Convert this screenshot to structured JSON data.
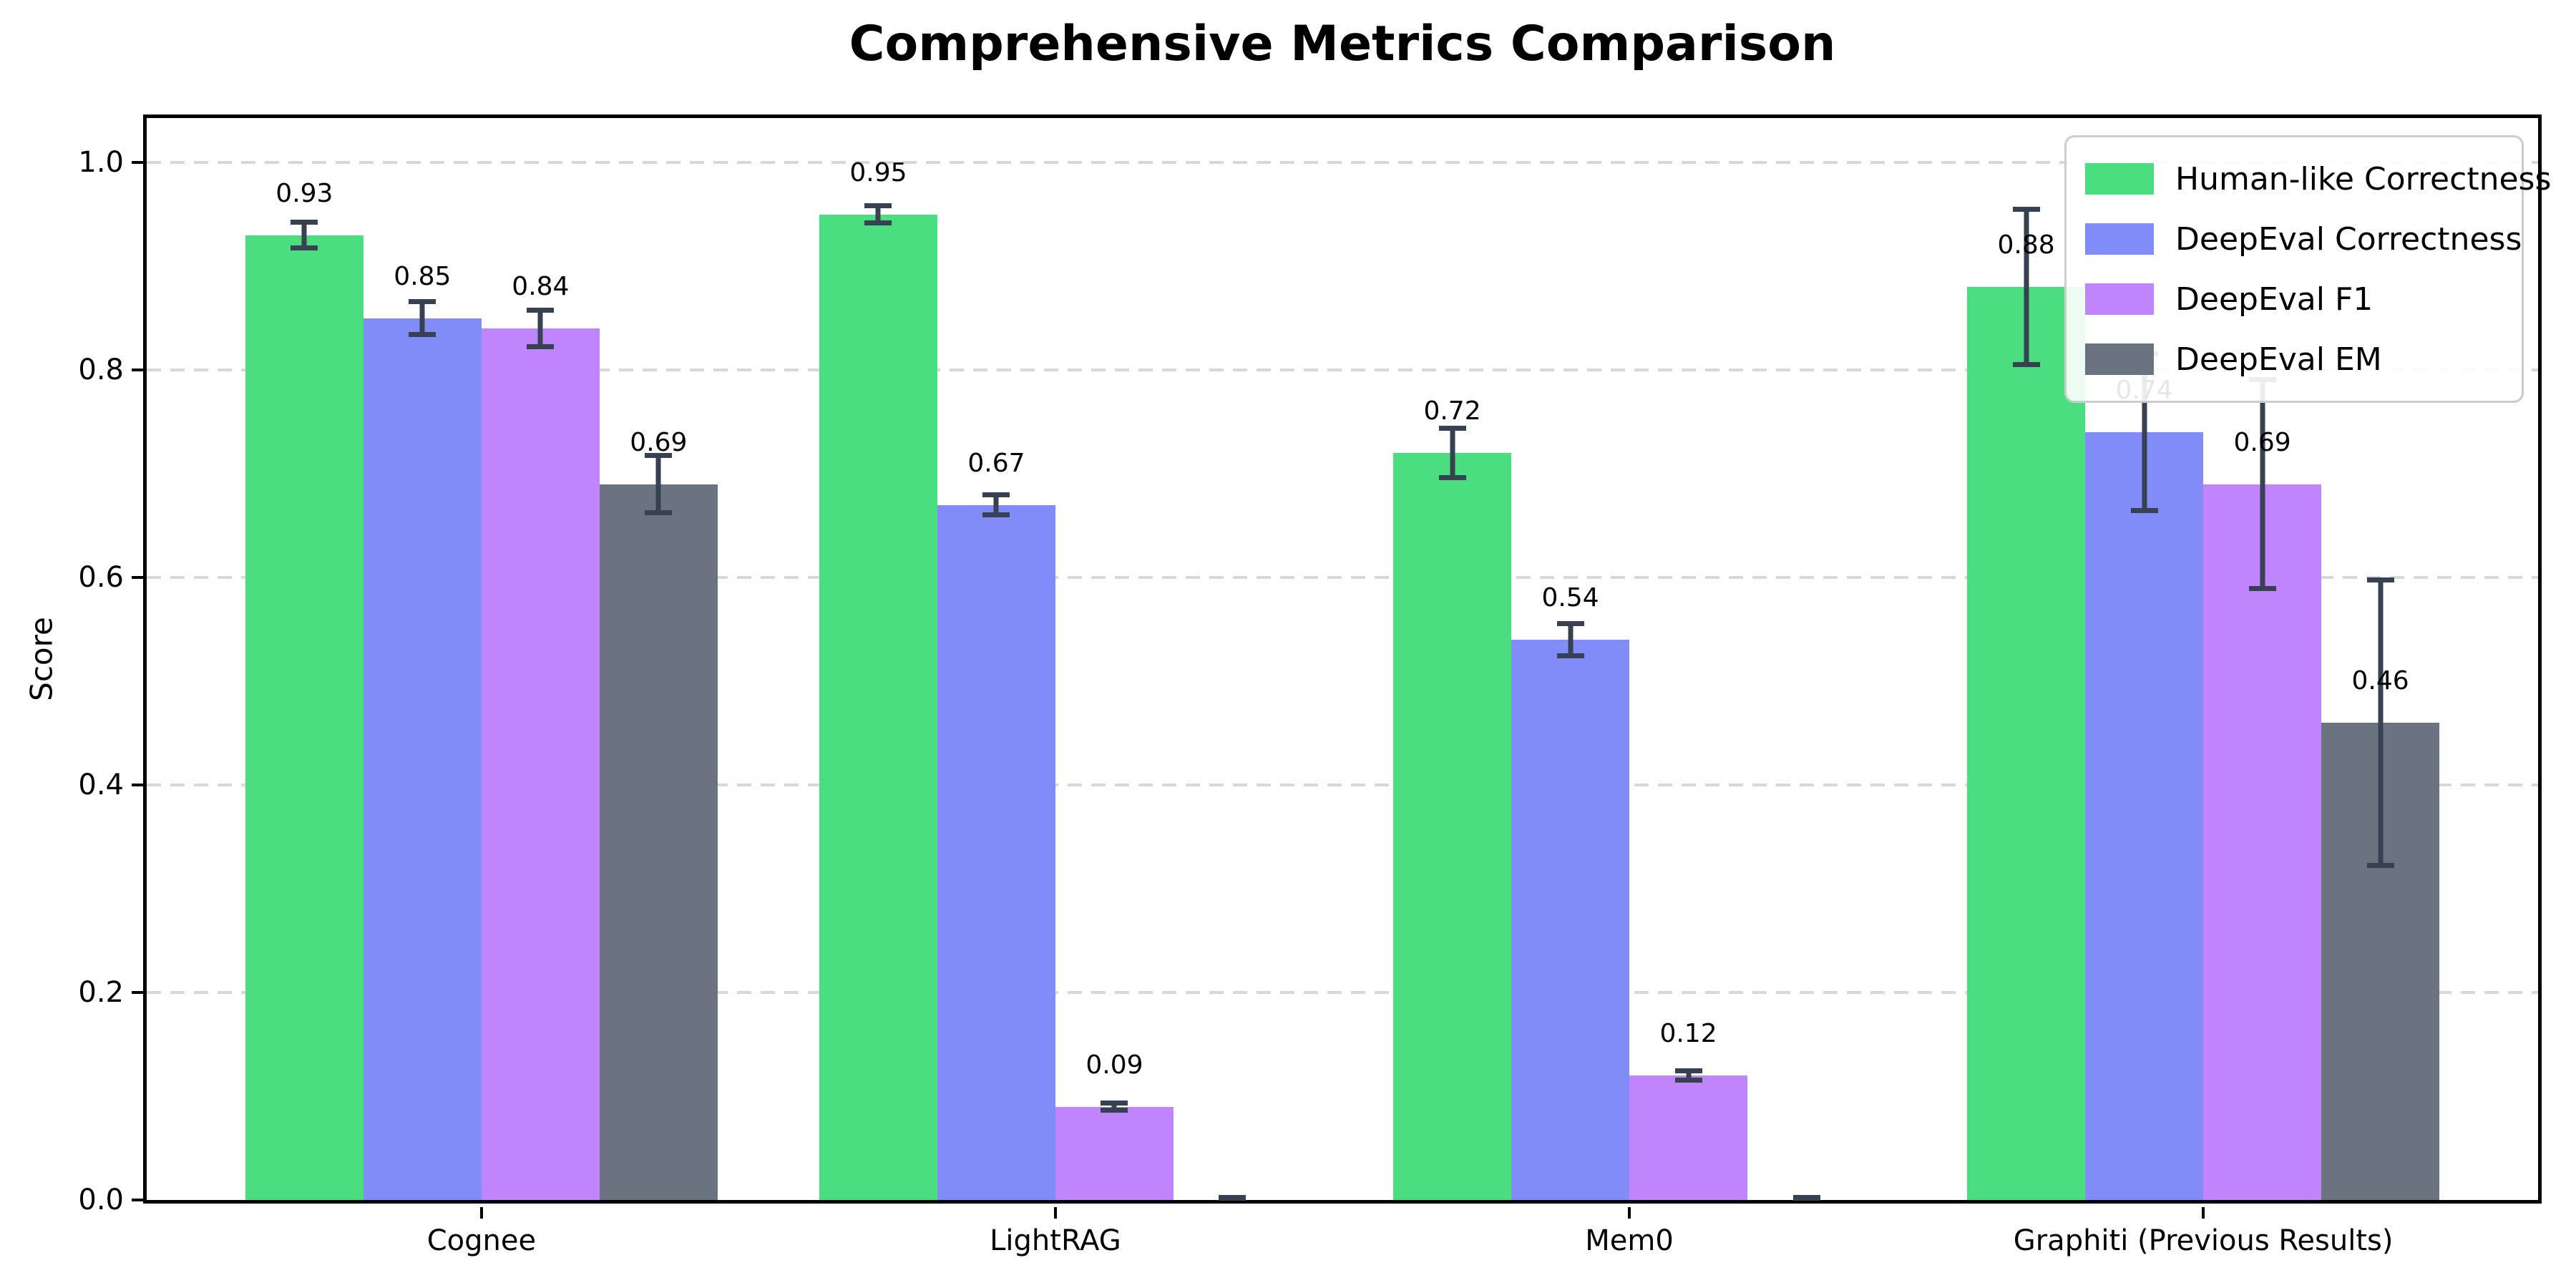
{
  "title": "Comprehensive Metrics Comparison",
  "axis": {
    "ylabel": "Score",
    "yticks": [
      "0.0",
      "0.2",
      "0.4",
      "0.6",
      "0.8",
      "1.0"
    ],
    "ymax_visible": 1.043
  },
  "colors": {
    "error_bar": "#374151",
    "gridline": "#d8d8d8",
    "legend_border": "#cccccc",
    "axis_frame": "#000000"
  },
  "chart_data": {
    "type": "bar",
    "title": "Comprehensive Metrics Comparison",
    "xlabel": "",
    "ylabel": "Score",
    "ylim": [
      0,
      1.05
    ],
    "grid": "horizontal dashed lines at 0.2 intervals",
    "legend_position": "upper right",
    "error_bars": true,
    "categories": [
      "Cognee",
      "LightRAG",
      "Mem0",
      "Graphiti (Previous Results)"
    ],
    "series": [
      {
        "name": "Human-like Correctness",
        "color": "#4ade80",
        "values": [
          0.93,
          0.95,
          0.72,
          0.88
        ],
        "errors": [
          0.015,
          0.011,
          0.026,
          0.077
        ],
        "labels": [
          "0.93",
          "0.95",
          "0.72",
          "0.88"
        ]
      },
      {
        "name": "DeepEval Correctness",
        "color": "#818cf8",
        "values": [
          0.85,
          0.67,
          0.54,
          0.74
        ],
        "errors": [
          0.018,
          0.012,
          0.018,
          0.078
        ],
        "labels": [
          "0.85",
          "0.67",
          "0.54",
          "0.74"
        ]
      },
      {
        "name": "DeepEval F1",
        "color": "#c084fc",
        "values": [
          0.84,
          0.09,
          0.12,
          0.69
        ],
        "errors": [
          0.02,
          0.006,
          0.007,
          0.103
        ],
        "labels": [
          "0.84",
          "0.09",
          "0.12",
          "0.69"
        ]
      },
      {
        "name": "DeepEval EM",
        "color": "#6b7280",
        "values": [
          0.69,
          0.0,
          0.0,
          0.46
        ],
        "errors": [
          0.03,
          0.004,
          0.004,
          0.14
        ],
        "labels": [
          "0.69",
          "",
          "",
          "0.46"
        ]
      }
    ]
  }
}
